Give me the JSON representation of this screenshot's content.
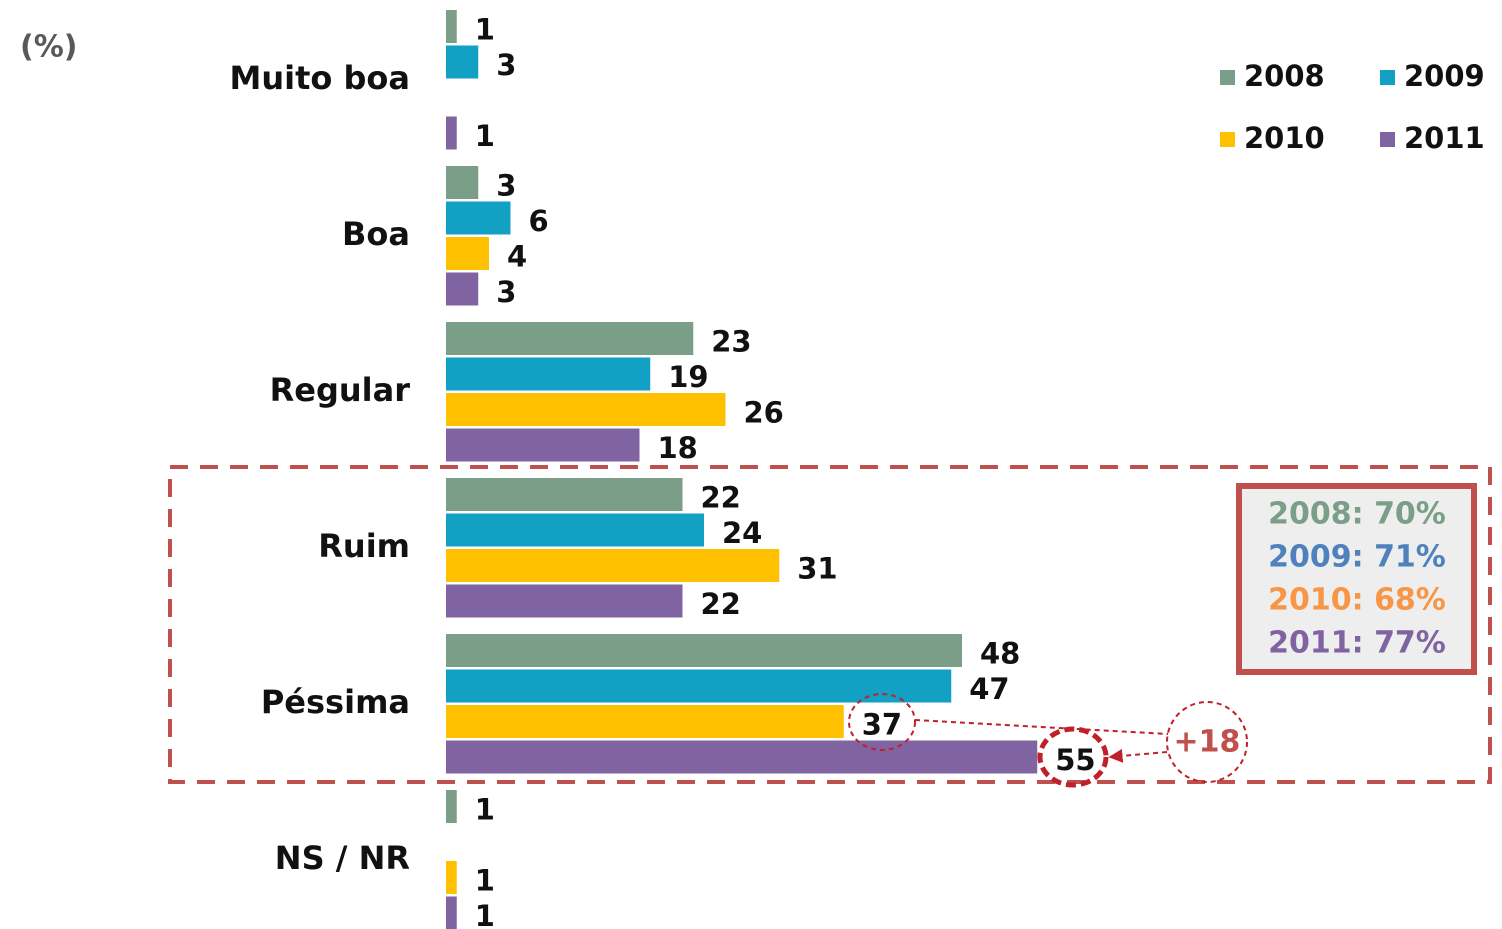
{
  "chart_data": {
    "type": "hbar",
    "unit_label": "(%)",
    "categories": [
      "Muito boa",
      "Boa",
      "Regular",
      "Ruim",
      "Péssima",
      "NS / NR"
    ],
    "series": [
      {
        "name": "2008",
        "color": "#7a9e87",
        "values": [
          1,
          3,
          23,
          22,
          48,
          1
        ]
      },
      {
        "name": "2009",
        "color": "#12a0c4",
        "values": [
          3,
          6,
          19,
          24,
          47,
          null
        ]
      },
      {
        "name": "2010",
        "color": "#ffc000",
        "values": [
          null,
          4,
          26,
          31,
          37,
          1
        ]
      },
      {
        "name": "2011",
        "color": "#8064a2",
        "values": [
          1,
          3,
          18,
          22,
          55,
          1
        ]
      }
    ],
    "legend": "top-right",
    "annotations": {
      "summary": [
        {
          "text": "2008: 70%",
          "color": "#7a9e87"
        },
        {
          "text": "2009: 71%",
          "color": "#4f81bd"
        },
        {
          "text": "2010: 68%",
          "color": "#f79646"
        },
        {
          "text": "2011: 77%",
          "color": "#8064a2"
        }
      ],
      "difference": {
        "text": "+18",
        "color": "#c0504d"
      }
    }
  }
}
